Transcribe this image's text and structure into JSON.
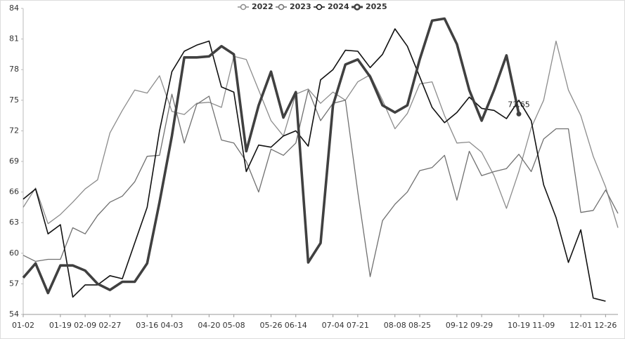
{
  "chart_data": {
    "type": "line",
    "categories": [
      "01-02",
      null,
      null,
      "01-19",
      null,
      "02-09",
      null,
      "02-27",
      null,
      null,
      "03-16",
      null,
      "04-03",
      null,
      null,
      "04-20",
      null,
      "05-08",
      null,
      null,
      "05-26",
      null,
      "06-14",
      null,
      null,
      "07-04",
      null,
      "07-21",
      null,
      null,
      "08-08",
      null,
      "08-25",
      null,
      null,
      "09-12",
      null,
      "09-29",
      null,
      null,
      "10-19",
      null,
      "11-09",
      null,
      null,
      "12-01",
      null,
      "12-26",
      null
    ],
    "series": [
      {
        "name": "2022",
        "color": "#8c8c8c",
        "values": [
          64.5,
          66.4,
          62.9,
          63.8,
          65,
          66.3,
          67.2,
          71.8,
          74,
          76,
          75.7,
          77.4,
          73.9,
          73.6,
          74.7,
          74.8,
          74.3,
          79.3,
          79,
          76,
          73,
          71.5,
          75.6,
          76.1,
          74.7,
          75.8,
          75,
          76.8,
          77.5,
          75,
          72.2,
          73.7,
          76.6,
          76.8,
          73.5,
          70.8,
          70.9,
          69.9,
          67.6,
          64.4,
          68,
          72.3,
          75,
          80.8,
          76,
          73.5,
          69.5,
          66.5,
          62.5
        ]
      },
      {
        "name": "2023",
        "color": "#707070",
        "values": [
          59.8,
          59.2,
          59.4,
          59.4,
          62.5,
          61.9,
          63.7,
          65,
          65.6,
          67,
          69.5,
          69.6,
          75.6,
          70.8,
          74.6,
          75.4,
          71.1,
          70.8,
          69,
          66,
          70.2,
          69.6,
          70.8,
          76,
          73,
          74.7,
          75,
          66,
          57.7,
          63.2,
          64.8,
          66,
          68.1,
          68.4,
          69.6,
          65.2,
          70,
          67.6,
          68,
          68.3,
          69.7,
          68,
          71.2,
          72.2,
          72.2,
          64,
          64.2,
          66.2,
          63.9
        ]
      },
      {
        "name": "2024",
        "color": "#111111",
        "values": [
          65.3,
          66.3,
          61.9,
          62.8,
          55.7,
          56.9,
          56.9,
          57.8,
          57.5,
          61,
          64.5,
          72,
          77.8,
          79.8,
          80.4,
          80.8,
          76.3,
          75.8,
          68,
          70.6,
          70.4,
          71.5,
          72,
          70.5,
          77,
          78,
          79.9,
          79.8,
          78.2,
          79.5,
          82,
          80.3,
          77.3,
          74.3,
          72.8,
          73.8,
          75.3,
          74.2,
          74,
          73.2,
          75,
          73,
          66.7,
          63.5,
          59.1,
          62.3,
          55.6,
          55.3,
          null
        ]
      },
      {
        "name": "2025",
        "color": "#404040",
        "values": [
          57.6,
          59,
          56.1,
          58.8,
          58.8,
          58.3,
          57.0,
          56.4,
          57.2,
          57.2,
          59,
          65,
          71.5,
          79.2,
          79.2,
          79.3,
          80.3,
          79.5,
          70,
          74.5,
          77.8,
          73.3,
          75.8,
          59.1,
          61,
          74.5,
          78.5,
          79,
          77.3,
          74.5,
          73.8,
          74.5,
          79,
          82.8,
          83,
          80.5,
          76,
          73,
          76,
          79.4,
          73.65,
          null,
          null,
          null,
          null,
          null,
          null,
          null,
          null
        ]
      }
    ],
    "ylim": [
      54,
      84
    ],
    "yticks": [
      54,
      57,
      60,
      63,
      66,
      69,
      72,
      75,
      78,
      81,
      84
    ],
    "grid": false,
    "legend": "top"
  }
}
